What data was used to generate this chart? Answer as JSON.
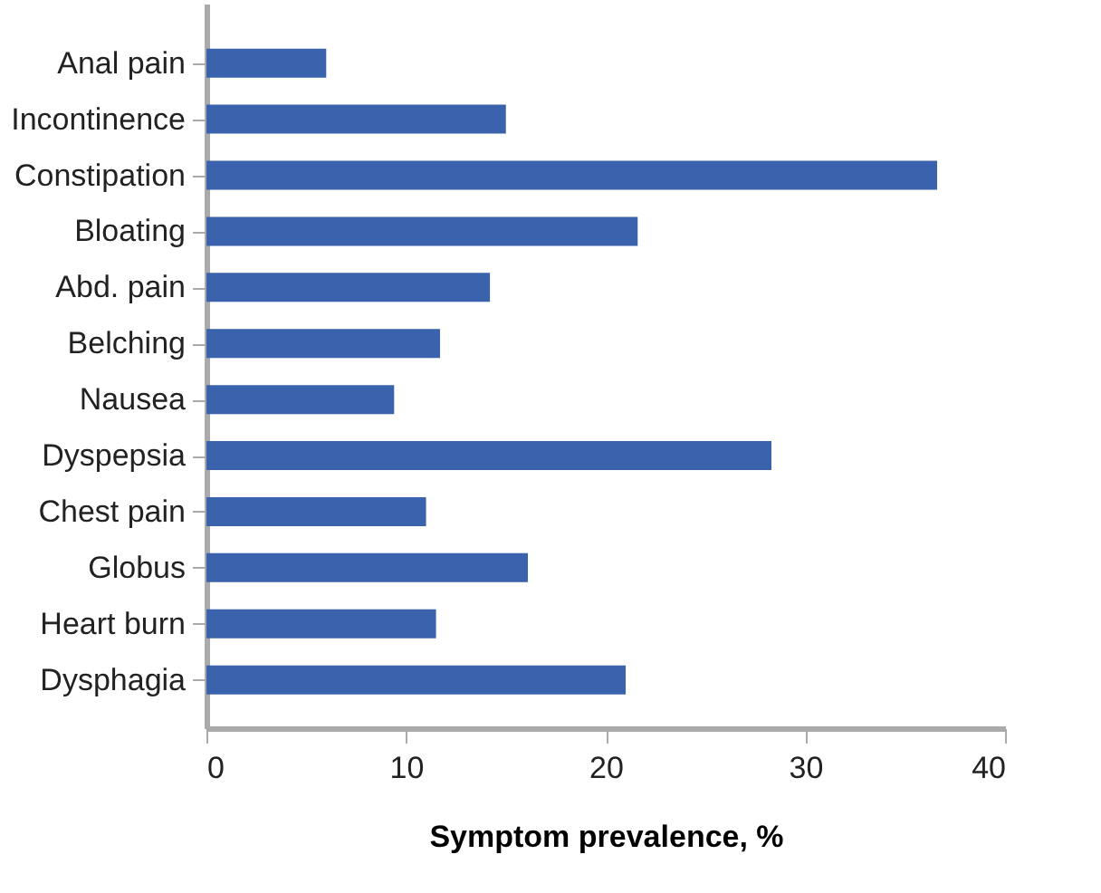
{
  "chart_data": {
    "type": "bar",
    "orientation": "horizontal",
    "categories": [
      "Anal pain",
      "Incontinence",
      "Constipation",
      "Bloating",
      "Abd. pain",
      "Belching",
      "Nausea",
      "Dyspepsia",
      "Chest pain",
      "Globus",
      "Heart burn",
      "Dysphagia"
    ],
    "values": [
      6.0,
      15.0,
      36.6,
      21.6,
      14.2,
      11.7,
      9.4,
      28.3,
      11.0,
      16.1,
      11.5,
      21.0
    ],
    "color": "#3a62ad",
    "xlim": [
      0,
      40
    ],
    "xticks": [
      0,
      10,
      20,
      30,
      40
    ],
    "xlabel": "Symptom prevalence, %",
    "grid": false
  }
}
